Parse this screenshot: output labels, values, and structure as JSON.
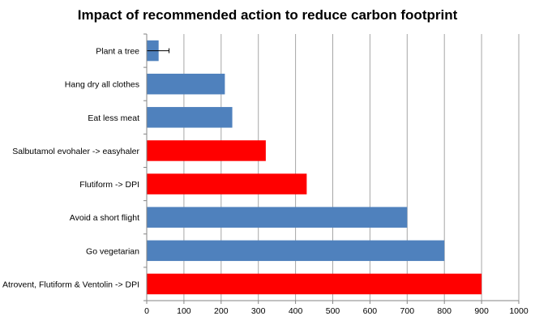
{
  "chart_data": {
    "type": "bar",
    "orientation": "horizontal",
    "title": "Impact of recommended action to reduce carbon footprint",
    "xlabel": "",
    "ylabel": "",
    "xlim": [
      0,
      1000
    ],
    "x_ticks": [
      0,
      100,
      200,
      300,
      400,
      500,
      600,
      700,
      800,
      900,
      1000
    ],
    "grid": "vertical major gridlines",
    "legend": "none",
    "colors": {
      "lifestyle": "#4f81bd",
      "inhaler": "#ff0000"
    },
    "categories": [
      "Plant a tree",
      "Hang dry all clothes",
      "Eat less meat",
      "Salbutamol evohaler -> easyhaler",
      "Flutiform -> DPI",
      "Avoid a short  flight",
      "Go vegetarian",
      "Atrovent, Flutiform & Ventolin -> DPI"
    ],
    "values": [
      32,
      210,
      230,
      320,
      430,
      700,
      800,
      900
    ],
    "bar_colors": [
      "#4f81bd",
      "#4f81bd",
      "#4f81bd",
      "#ff0000",
      "#ff0000",
      "#4f81bd",
      "#4f81bd",
      "#ff0000"
    ],
    "error_bars": [
      {
        "category": "Plant a tree",
        "low": 0,
        "high": 60
      }
    ]
  }
}
